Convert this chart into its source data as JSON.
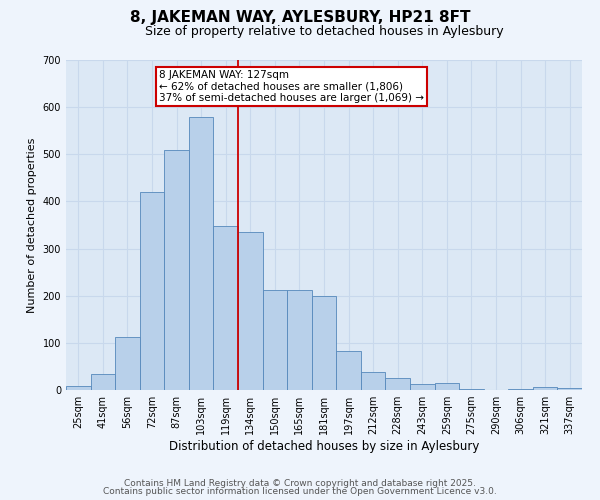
{
  "title": "8, JAKEMAN WAY, AYLESBURY, HP21 8FT",
  "subtitle": "Size of property relative to detached houses in Aylesbury",
  "xlabel": "Distribution of detached houses by size in Aylesbury",
  "ylabel": "Number of detached properties",
  "bar_labels": [
    "25sqm",
    "41sqm",
    "56sqm",
    "72sqm",
    "87sqm",
    "103sqm",
    "119sqm",
    "134sqm",
    "150sqm",
    "165sqm",
    "181sqm",
    "197sqm",
    "212sqm",
    "228sqm",
    "243sqm",
    "259sqm",
    "275sqm",
    "290sqm",
    "306sqm",
    "321sqm",
    "337sqm"
  ],
  "bar_values": [
    8,
    35,
    113,
    420,
    510,
    580,
    348,
    335,
    212,
    212,
    200,
    82,
    38,
    25,
    13,
    15,
    3,
    0,
    2,
    7,
    5
  ],
  "bar_color": "#b8d0ea",
  "bar_edge_color": "#5588bb",
  "vline_x_index": 6.5,
  "vline_color": "#cc0000",
  "annotation_line1": "8 JAKEMAN WAY: 127sqm",
  "annotation_line2": "← 62% of detached houses are smaller (1,806)",
  "annotation_line3": "37% of semi-detached houses are larger (1,069) →",
  "annotation_box_color": "#cc0000",
  "ylim": [
    0,
    700
  ],
  "yticks": [
    0,
    100,
    200,
    300,
    400,
    500,
    600,
    700
  ],
  "plot_bg": "#dce8f5",
  "fig_bg": "#eef4fc",
  "grid_color": "#c8d8ec",
  "footer1": "Contains HM Land Registry data © Crown copyright and database right 2025.",
  "footer2": "Contains public sector information licensed under the Open Government Licence v3.0.",
  "title_fontsize": 11,
  "subtitle_fontsize": 9,
  "xlabel_fontsize": 8.5,
  "ylabel_fontsize": 8,
  "tick_fontsize": 7,
  "annot_fontsize": 7.5,
  "footer_fontsize": 6.5
}
